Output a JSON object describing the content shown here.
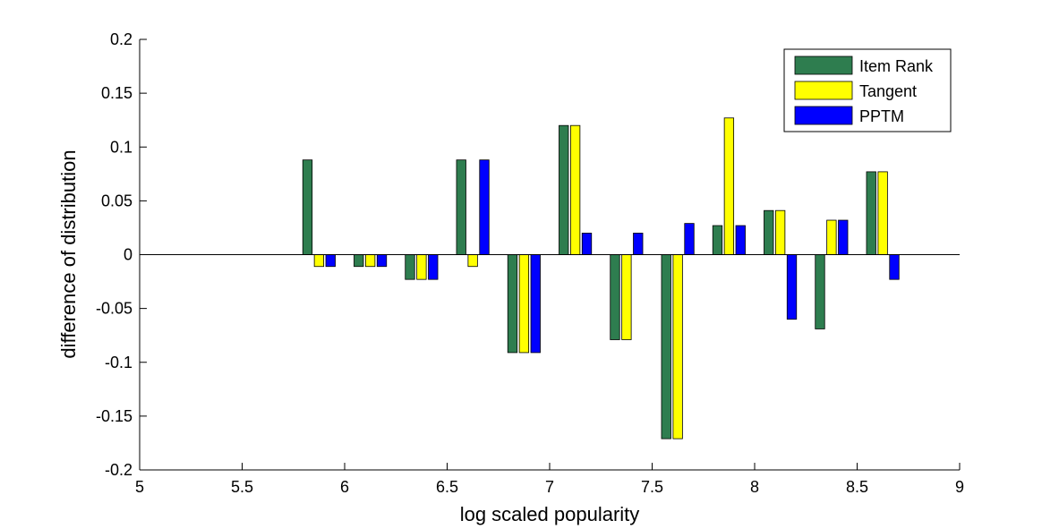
{
  "chart_data": {
    "type": "bar",
    "title": "",
    "xlabel": "log scaled popularity",
    "ylabel": "difference of distribution",
    "xlim": [
      5,
      9
    ],
    "ylim": [
      -0.2,
      0.2
    ],
    "xticks": [
      "5",
      "5.5",
      "6",
      "6.5",
      "7",
      "7.5",
      "8",
      "8.5",
      "9"
    ],
    "yticks": [
      "0.2",
      "0.15",
      "0.1",
      "0.05",
      "0",
      "-0.05",
      "-0.1",
      "-0.15",
      "-0.2"
    ],
    "x": [
      5.875,
      6.125,
      6.375,
      6.625,
      6.875,
      7.125,
      7.375,
      7.625,
      7.875,
      8.125,
      8.375,
      8.625
    ],
    "series": [
      {
        "name": "Item Rank",
        "color": "#2e7d4f",
        "values": [
          0.088,
          -0.011,
          -0.023,
          0.088,
          -0.091,
          0.12,
          -0.079,
          -0.171,
          0.027,
          0.041,
          -0.069,
          0.077
        ]
      },
      {
        "name": "Tangent",
        "color": "#ffff00",
        "values": [
          -0.011,
          -0.011,
          -0.023,
          -0.011,
          -0.091,
          0.12,
          -0.079,
          -0.171,
          0.127,
          0.041,
          0.032,
          0.077
        ]
      },
      {
        "name": "PPTM",
        "color": "#0000ff",
        "values": [
          -0.011,
          -0.011,
          -0.023,
          0.088,
          -0.091,
          0.02,
          0.02,
          0.029,
          0.027,
          -0.06,
          0.032,
          -0.023
        ]
      }
    ],
    "grid": false,
    "legend_position": "top-right"
  }
}
